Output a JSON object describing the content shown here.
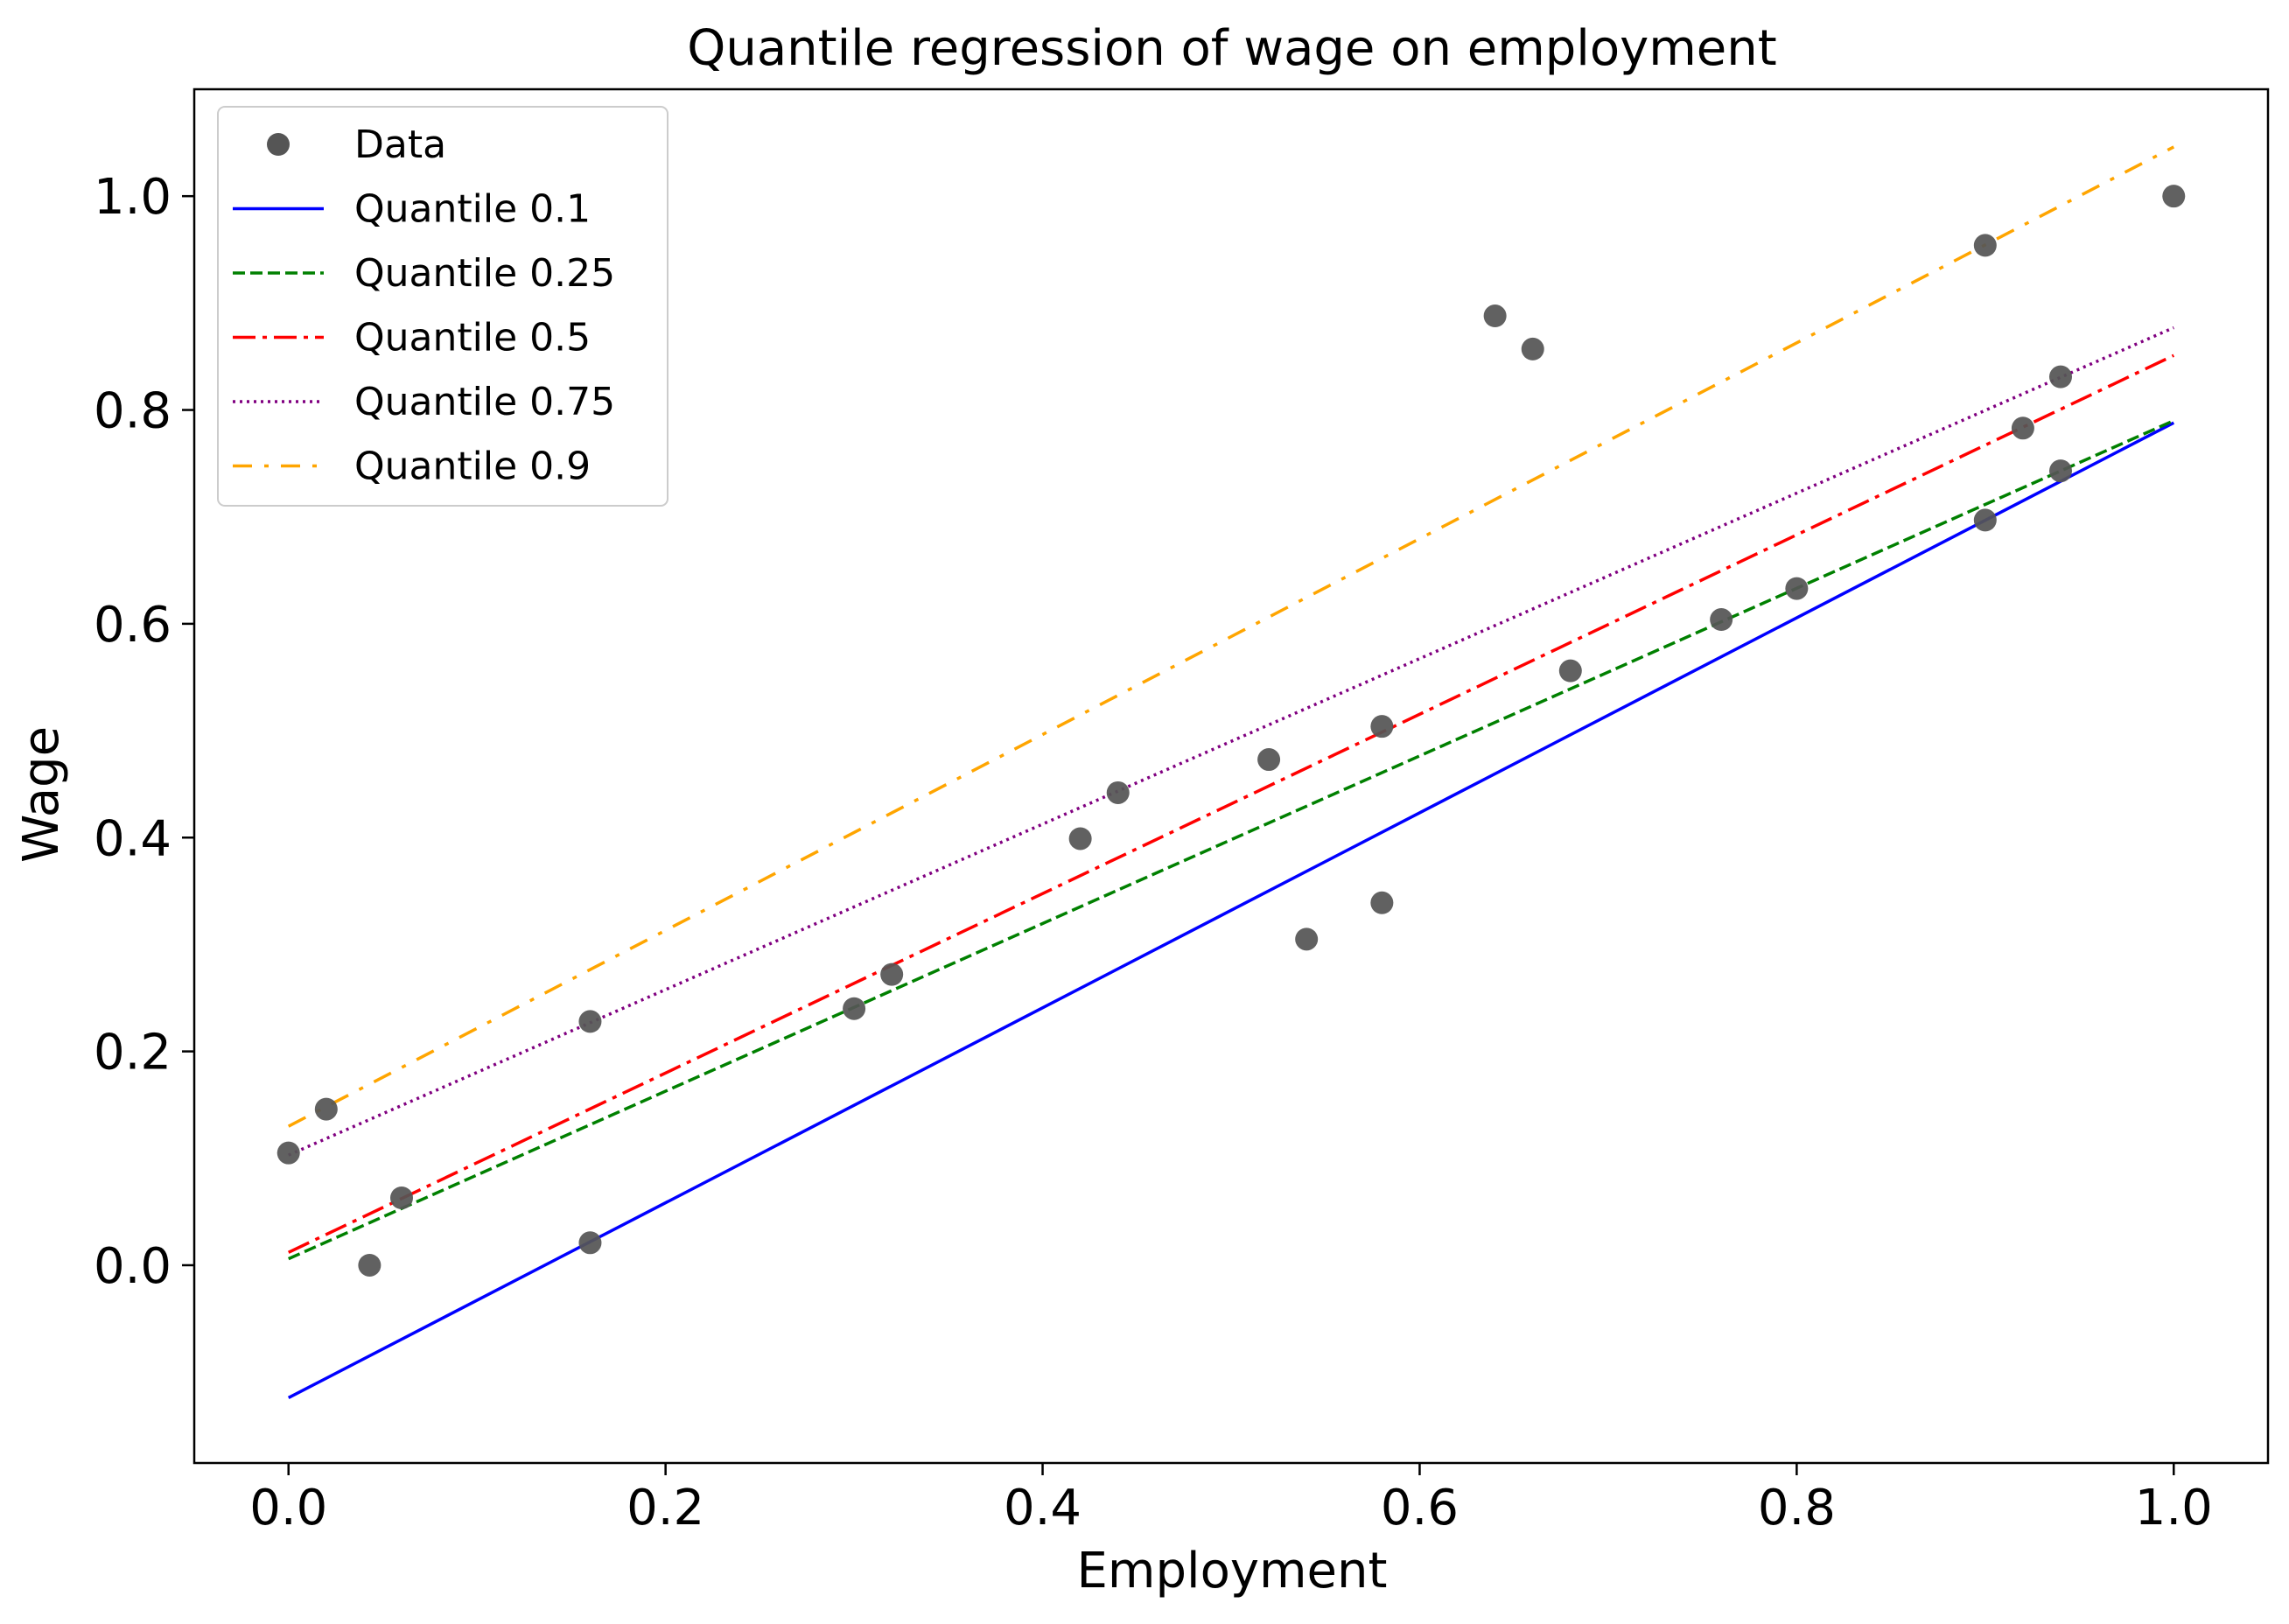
{
  "chart_data": {
    "type": "scatter",
    "title": "Quantile regression of wage on employment",
    "xlabel": "Employment",
    "ylabel": "Wage",
    "xlim": [
      -0.05,
      1.05
    ],
    "ylim": [
      -0.185,
      1.1
    ],
    "xticks": [
      0.0,
      0.2,
      0.4,
      0.6,
      0.8,
      1.0
    ],
    "xtick_labels": [
      "0.0",
      "0.2",
      "0.4",
      "0.6",
      "0.8",
      "1.0"
    ],
    "yticks": [
      0.0,
      0.2,
      0.4,
      0.6,
      0.8,
      1.0
    ],
    "ytick_labels": [
      "0.0",
      "0.2",
      "0.4",
      "0.6",
      "0.8",
      "1.0"
    ],
    "grid": false,
    "legend_position": "top-left",
    "scatter": {
      "name": "Data",
      "color": "#555555",
      "points": [
        {
          "x": 0.0,
          "y": 0.105
        },
        {
          "x": 0.02,
          "y": 0.146
        },
        {
          "x": 0.043,
          "y": 0.0
        },
        {
          "x": 0.06,
          "y": 0.063
        },
        {
          "x": 0.16,
          "y": 0.228
        },
        {
          "x": 0.16,
          "y": 0.021
        },
        {
          "x": 0.3,
          "y": 0.24
        },
        {
          "x": 0.32,
          "y": 0.272
        },
        {
          "x": 0.42,
          "y": 0.399
        },
        {
          "x": 0.44,
          "y": 0.442
        },
        {
          "x": 0.52,
          "y": 0.473
        },
        {
          "x": 0.54,
          "y": 0.305
        },
        {
          "x": 0.58,
          "y": 0.339
        },
        {
          "x": 0.58,
          "y": 0.504
        },
        {
          "x": 0.64,
          "y": 0.888
        },
        {
          "x": 0.66,
          "y": 0.857
        },
        {
          "x": 0.68,
          "y": 0.556
        },
        {
          "x": 0.76,
          "y": 0.604
        },
        {
          "x": 0.8,
          "y": 0.633
        },
        {
          "x": 0.9,
          "y": 0.954
        },
        {
          "x": 0.9,
          "y": 0.697
        },
        {
          "x": 0.92,
          "y": 0.783
        },
        {
          "x": 0.94,
          "y": 0.831
        },
        {
          "x": 0.94,
          "y": 0.743
        },
        {
          "x": 1.0,
          "y": 1.0
        }
      ]
    },
    "series": [
      {
        "name": "Quantile 0.1",
        "color": "#0000ff",
        "dash": "solid",
        "intercept": -0.124,
        "slope": 0.912
      },
      {
        "name": "Quantile 0.25",
        "color": "#008000",
        "dash": "dashed",
        "intercept": 0.006,
        "slope": 0.784
      },
      {
        "name": "Quantile 0.5",
        "color": "#ff0000",
        "dash": "dashdot",
        "intercept": 0.012,
        "slope": 0.839
      },
      {
        "name": "Quantile 0.75",
        "color": "#800080",
        "dash": "dotted",
        "intercept": 0.103,
        "slope": 0.774
      },
      {
        "name": "Quantile 0.9",
        "color": "#ffa500",
        "dash": "dashdot-sparse",
        "intercept": 0.13,
        "slope": 0.916
      }
    ]
  }
}
